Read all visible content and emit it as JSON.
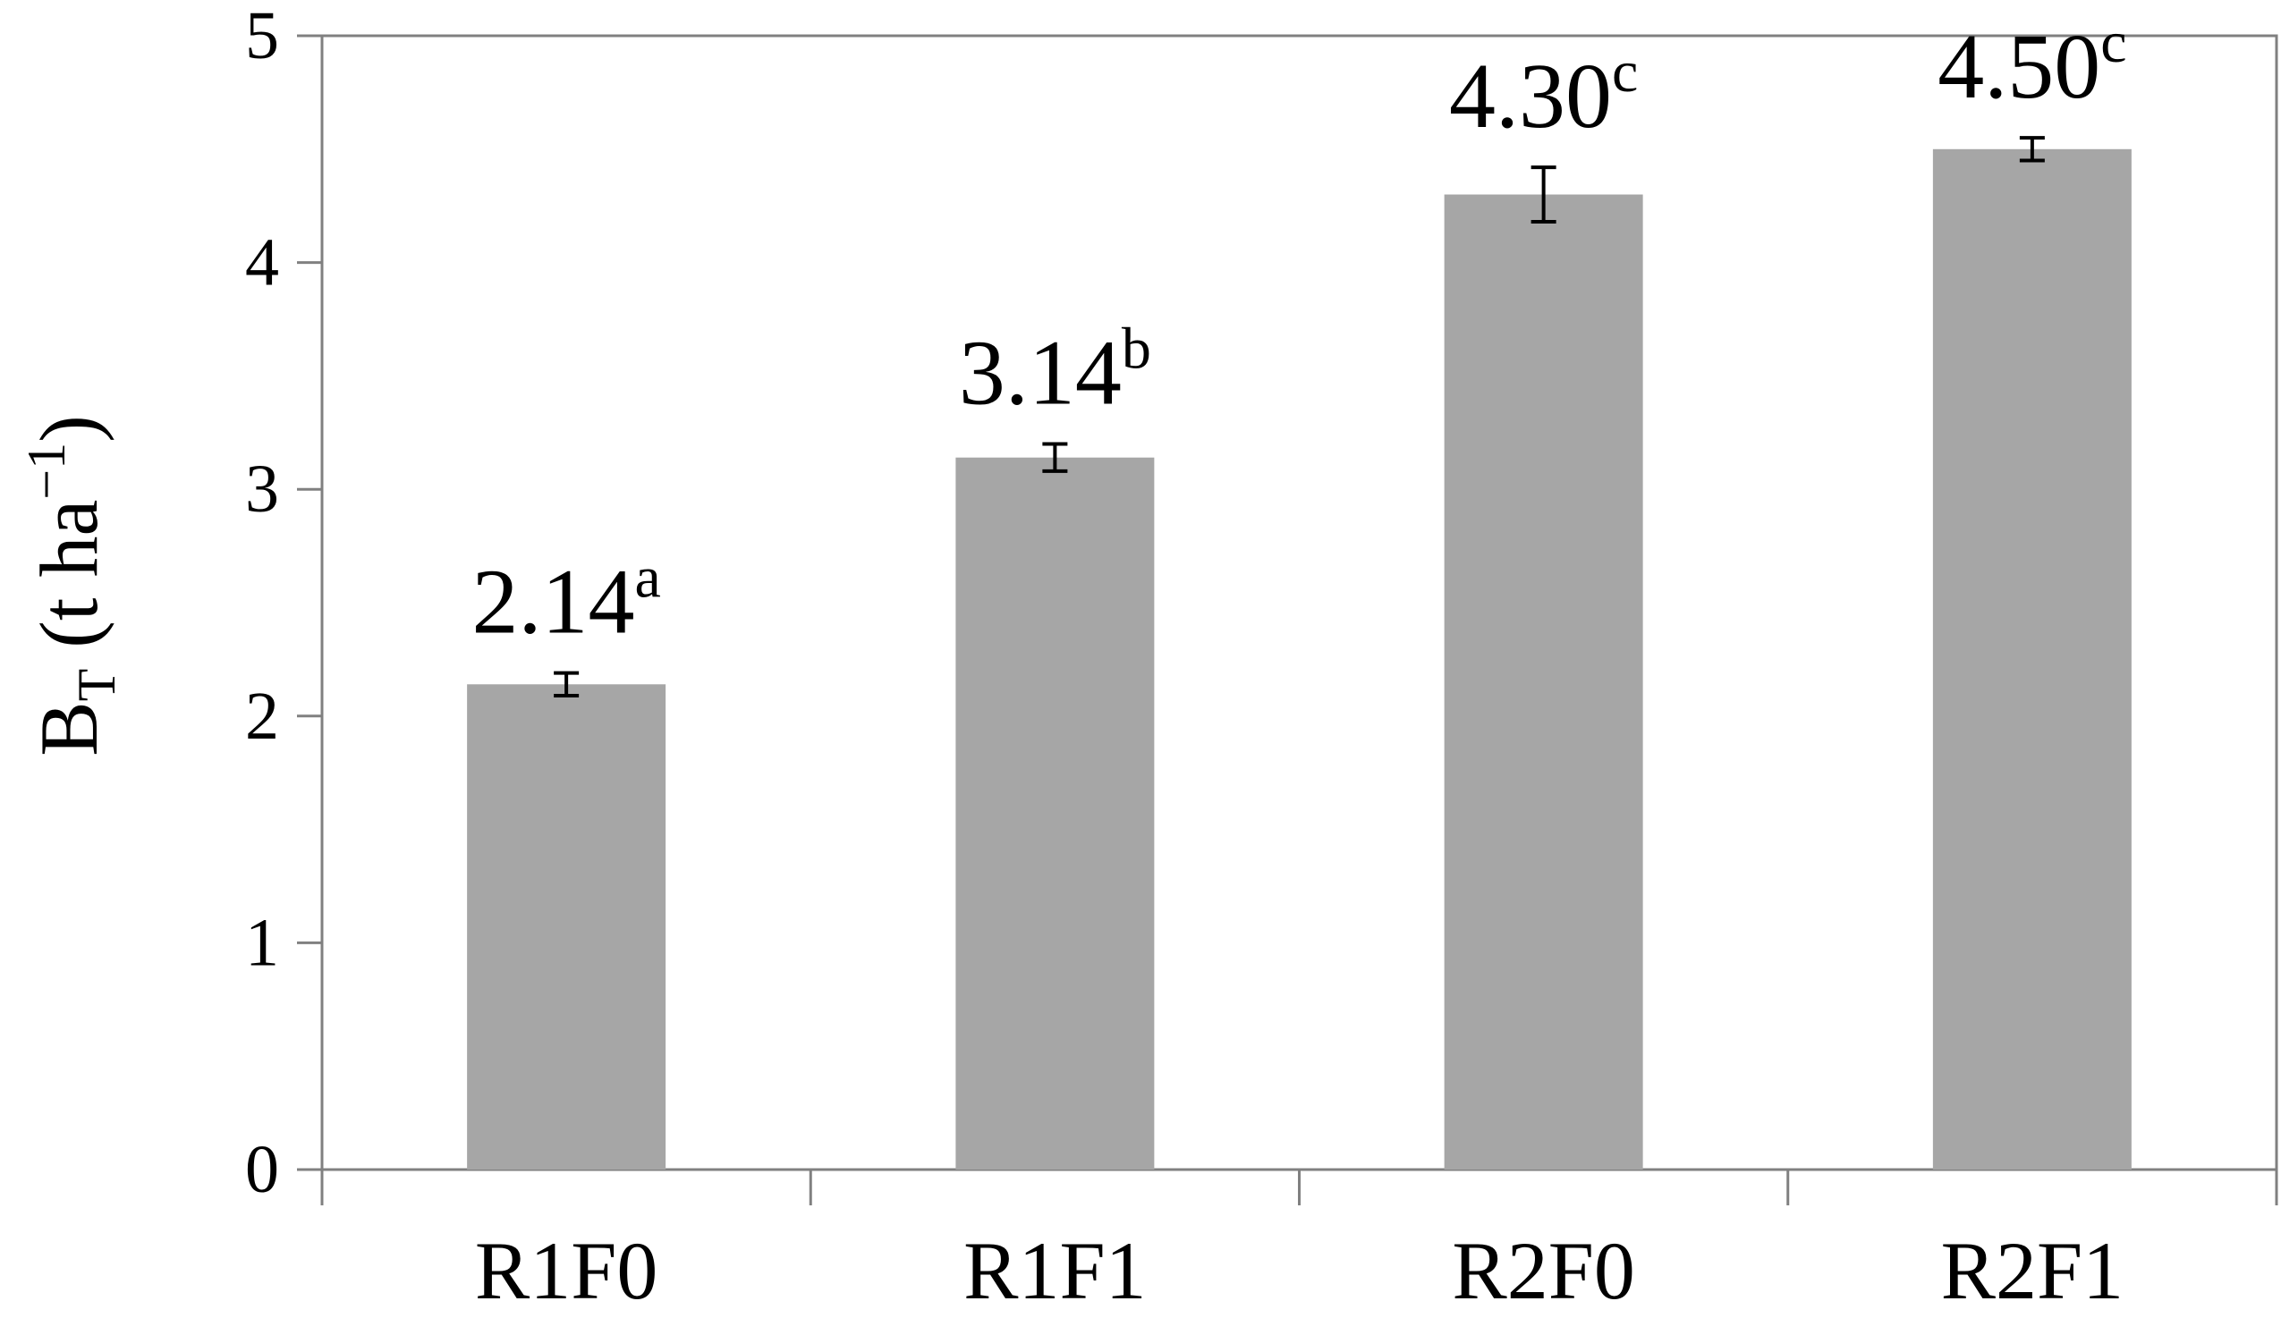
{
  "chart_data": {
    "type": "bar",
    "categories": [
      "R1F0",
      "R1F1",
      "R2F0",
      "R2F1"
    ],
    "values": [
      2.14,
      3.14,
      4.3,
      4.5
    ],
    "errors": [
      0.05,
      0.06,
      0.12,
      0.05
    ],
    "data_labels": [
      {
        "value": "2.14",
        "letter": "a"
      },
      {
        "value": "3.14",
        "letter": "b"
      },
      {
        "value": "4.30",
        "letter": "c"
      },
      {
        "value": "4.50",
        "letter": "c"
      }
    ],
    "ylabel": {
      "main": "B",
      "subscript": "T",
      "unit_open": " (t ha",
      "unit_exp": "−1",
      "unit_close": ")"
    },
    "xlabel": "",
    "ylim": [
      0,
      5
    ],
    "yticks": [
      0,
      1,
      2,
      3,
      4,
      5
    ],
    "grid": false,
    "legend": "none",
    "colors": {
      "bar": "#a6a6a6",
      "axis": "#808080",
      "error_bar": "#000000",
      "text": "#000000"
    }
  }
}
